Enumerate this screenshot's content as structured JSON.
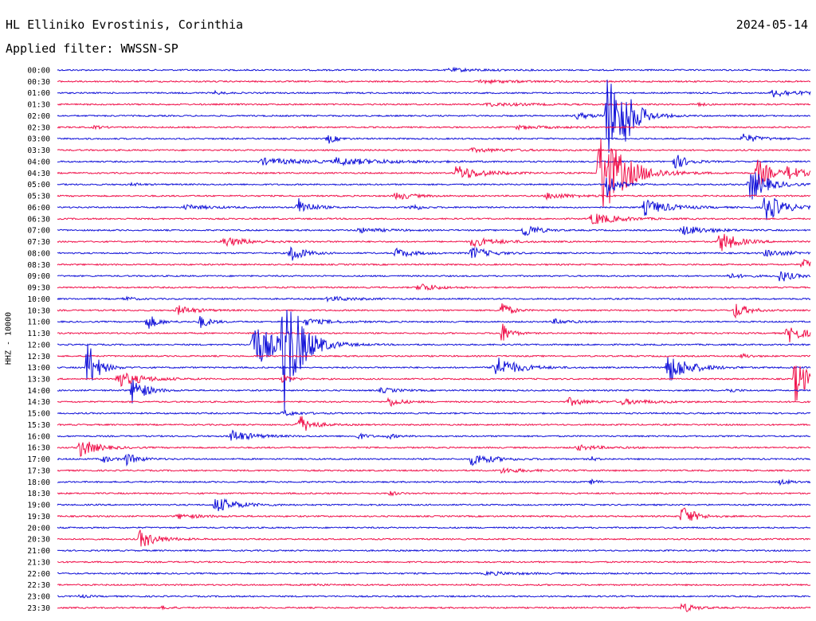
{
  "header": {
    "station": "HL Elliniko Evrostinis, Corinthia",
    "date": "2024-05-14",
    "filter_label": "Applied filter: WWSSN-SP"
  },
  "chart_data": {
    "type": "line",
    "title": "HL Elliniko Evrostinis, Corinthia",
    "subtitle": "Applied filter: WWSSN-SP",
    "date": "2024-05-14",
    "ylabel": "HHZ - 10000",
    "row_interval_minutes": 30,
    "row_labels": [
      "00:00",
      "00:30",
      "01:00",
      "01:30",
      "02:00",
      "02:30",
      "03:00",
      "03:30",
      "04:00",
      "04:30",
      "05:00",
      "05:30",
      "06:00",
      "06:30",
      "07:00",
      "07:30",
      "08:00",
      "08:30",
      "09:00",
      "09:30",
      "10:00",
      "10:30",
      "11:00",
      "11:30",
      "12:00",
      "12:30",
      "13:00",
      "13:30",
      "14:00",
      "14:30",
      "15:00",
      "15:30",
      "16:00",
      "16:30",
      "17:00",
      "17:30",
      "18:00",
      "18:30",
      "19:00",
      "19:30",
      "20:00",
      "20:30",
      "21:00",
      "21:30",
      "22:00",
      "22:30",
      "23:00",
      "23:30"
    ],
    "colors": [
      "#1010d8",
      "#f0104a"
    ],
    "events": [
      {
        "row": 0,
        "x": 0.52,
        "a": 2,
        "w": 0.04
      },
      {
        "row": 1,
        "x": 0.56,
        "a": 2,
        "w": 0.05
      },
      {
        "row": 2,
        "x": 0.95,
        "a": 5,
        "w": 0.03
      },
      {
        "row": 2,
        "x": 0.21,
        "a": 2,
        "w": 0.01
      },
      {
        "row": 3,
        "x": 0.57,
        "a": 2,
        "w": 0.05
      },
      {
        "row": 3,
        "x": 0.85,
        "a": 2,
        "w": 0.01
      },
      {
        "row": 4,
        "x": 0.69,
        "a": 4,
        "w": 0.02
      },
      {
        "row": 4,
        "x": 0.73,
        "a": 55,
        "w": 0.02
      },
      {
        "row": 4,
        "x": 0.75,
        "a": 25,
        "w": 0.015
      },
      {
        "row": 5,
        "x": 0.05,
        "a": 2,
        "w": 0.01
      },
      {
        "row": 5,
        "x": 0.61,
        "a": 2,
        "w": 0.04
      },
      {
        "row": 6,
        "x": 0.36,
        "a": 6,
        "w": 0.01
      },
      {
        "row": 6,
        "x": 0.91,
        "a": 6,
        "w": 0.02
      },
      {
        "row": 7,
        "x": 0.55,
        "a": 2,
        "w": 0.05
      },
      {
        "row": 8,
        "x": 0.27,
        "a": 4,
        "w": 0.06
      },
      {
        "row": 8,
        "x": 0.37,
        "a": 4,
        "w": 0.06
      },
      {
        "row": 8,
        "x": 0.82,
        "a": 10,
        "w": 0.015
      },
      {
        "row": 9,
        "x": 0.53,
        "a": 10,
        "w": 0.03
      },
      {
        "row": 9,
        "x": 0.72,
        "a": 60,
        "w": 0.03
      },
      {
        "row": 9,
        "x": 0.97,
        "a": 8,
        "w": 0.02
      },
      {
        "row": 9,
        "x": 0.93,
        "a": 20,
        "w": 0.015
      },
      {
        "row": 10,
        "x": 0.1,
        "a": 2,
        "w": 0.01
      },
      {
        "row": 10,
        "x": 0.92,
        "a": 22,
        "w": 0.02
      },
      {
        "row": 10,
        "x": 0.73,
        "a": 20,
        "w": 0.01
      },
      {
        "row": 11,
        "x": 0.45,
        "a": 5,
        "w": 0.02
      },
      {
        "row": 11,
        "x": 0.65,
        "a": 4,
        "w": 0.03
      },
      {
        "row": 12,
        "x": 0.17,
        "a": 3,
        "w": 0.03
      },
      {
        "row": 12,
        "x": 0.32,
        "a": 12,
        "w": 0.015
      },
      {
        "row": 12,
        "x": 0.47,
        "a": 5,
        "w": 0.01
      },
      {
        "row": 12,
        "x": 0.78,
        "a": 10,
        "w": 0.03
      },
      {
        "row": 12,
        "x": 0.94,
        "a": 20,
        "w": 0.02
      },
      {
        "row": 13,
        "x": 0.71,
        "a": 8,
        "w": 0.03
      },
      {
        "row": 14,
        "x": 0.4,
        "a": 3,
        "w": 0.03
      },
      {
        "row": 14,
        "x": 0.62,
        "a": 10,
        "w": 0.015
      },
      {
        "row": 14,
        "x": 0.83,
        "a": 6,
        "w": 0.03
      },
      {
        "row": 15,
        "x": 0.22,
        "a": 6,
        "w": 0.03
      },
      {
        "row": 15,
        "x": 0.55,
        "a": 6,
        "w": 0.03
      },
      {
        "row": 15,
        "x": 0.88,
        "a": 14,
        "w": 0.02
      },
      {
        "row": 16,
        "x": 0.31,
        "a": 12,
        "w": 0.015
      },
      {
        "row": 16,
        "x": 0.45,
        "a": 6,
        "w": 0.02
      },
      {
        "row": 16,
        "x": 0.55,
        "a": 8,
        "w": 0.02
      },
      {
        "row": 16,
        "x": 0.94,
        "a": 4,
        "w": 0.03
      },
      {
        "row": 17,
        "x": 0.99,
        "a": 6,
        "w": 0.02
      },
      {
        "row": 18,
        "x": 0.89,
        "a": 3,
        "w": 0.02
      },
      {
        "row": 18,
        "x": 0.96,
        "a": 8,
        "w": 0.015
      },
      {
        "row": 19,
        "x": 0.48,
        "a": 6,
        "w": 0.02
      },
      {
        "row": 20,
        "x": 0.09,
        "a": 3,
        "w": 0.01
      },
      {
        "row": 20,
        "x": 0.36,
        "a": 3,
        "w": 0.03
      },
      {
        "row": 21,
        "x": 0.16,
        "a": 6,
        "w": 0.02
      },
      {
        "row": 21,
        "x": 0.59,
        "a": 12,
        "w": 0.01
      },
      {
        "row": 21,
        "x": 0.9,
        "a": 10,
        "w": 0.015
      },
      {
        "row": 22,
        "x": 0.12,
        "a": 10,
        "w": 0.012
      },
      {
        "row": 22,
        "x": 0.19,
        "a": 8,
        "w": 0.012
      },
      {
        "row": 22,
        "x": 0.33,
        "a": 4,
        "w": 0.03
      },
      {
        "row": 22,
        "x": 0.66,
        "a": 3,
        "w": 0.02
      },
      {
        "row": 23,
        "x": 0.59,
        "a": 14,
        "w": 0.01
      },
      {
        "row": 23,
        "x": 0.97,
        "a": 12,
        "w": 0.02
      },
      {
        "row": 24,
        "x": 0.26,
        "a": 30,
        "w": 0.03
      },
      {
        "row": 24,
        "x": 0.3,
        "a": 85,
        "w": 0.02
      },
      {
        "row": 25,
        "x": 0.91,
        "a": 3,
        "w": 0.01
      },
      {
        "row": 26,
        "x": 0.04,
        "a": 35,
        "w": 0.012
      },
      {
        "row": 26,
        "x": 0.58,
        "a": 16,
        "w": 0.025
      },
      {
        "row": 26,
        "x": 0.81,
        "a": 20,
        "w": 0.025
      },
      {
        "row": 27,
        "x": 0.08,
        "a": 10,
        "w": 0.03
      },
      {
        "row": 27,
        "x": 0.3,
        "a": 6,
        "w": 0.01
      },
      {
        "row": 27,
        "x": 0.98,
        "a": 30,
        "w": 0.015
      },
      {
        "row": 28,
        "x": 0.1,
        "a": 18,
        "w": 0.015
      },
      {
        "row": 28,
        "x": 0.43,
        "a": 3,
        "w": 0.02
      },
      {
        "row": 28,
        "x": 0.89,
        "a": 3,
        "w": 0.01
      },
      {
        "row": 29,
        "x": 0.44,
        "a": 6,
        "w": 0.015
      },
      {
        "row": 29,
        "x": 0.68,
        "a": 5,
        "w": 0.02
      },
      {
        "row": 29,
        "x": 0.75,
        "a": 3,
        "w": 0.04
      },
      {
        "row": 30,
        "x": 0.3,
        "a": 3,
        "w": 0.02
      },
      {
        "row": 31,
        "x": 0.32,
        "a": 14,
        "w": 0.015
      },
      {
        "row": 32,
        "x": 0.23,
        "a": 8,
        "w": 0.025
      },
      {
        "row": 32,
        "x": 0.4,
        "a": 4,
        "w": 0.01
      },
      {
        "row": 32,
        "x": 0.44,
        "a": 3,
        "w": 0.01
      },
      {
        "row": 33,
        "x": 0.03,
        "a": 12,
        "w": 0.02
      },
      {
        "row": 33,
        "x": 0.69,
        "a": 3,
        "w": 0.03
      },
      {
        "row": 34,
        "x": 0.06,
        "a": 5,
        "w": 0.01
      },
      {
        "row": 34,
        "x": 0.09,
        "a": 8,
        "w": 0.015
      },
      {
        "row": 34,
        "x": 0.55,
        "a": 8,
        "w": 0.025
      },
      {
        "row": 34,
        "x": 0.71,
        "a": 3,
        "w": 0.005
      },
      {
        "row": 35,
        "x": 0.59,
        "a": 3,
        "w": 0.03
      },
      {
        "row": 36,
        "x": 0.71,
        "a": 3,
        "w": 0.01
      },
      {
        "row": 36,
        "x": 0.96,
        "a": 3,
        "w": 0.015
      },
      {
        "row": 37,
        "x": 0.44,
        "a": 3,
        "w": 0.01
      },
      {
        "row": 38,
        "x": 0.21,
        "a": 10,
        "w": 0.025
      },
      {
        "row": 39,
        "x": 0.83,
        "a": 14,
        "w": 0.015
      },
      {
        "row": 39,
        "x": 0.16,
        "a": 3,
        "w": 0.03
      },
      {
        "row": 41,
        "x": 0.11,
        "a": 12,
        "w": 0.02
      },
      {
        "row": 44,
        "x": 0.57,
        "a": 2,
        "w": 0.04
      },
      {
        "row": 45,
        "x": 0.34,
        "a": 2,
        "w": 0.01
      },
      {
        "row": 46,
        "x": 0.03,
        "a": 2,
        "w": 0.01
      },
      {
        "row": 47,
        "x": 0.83,
        "a": 6,
        "w": 0.015
      },
      {
        "row": 47,
        "x": 0.14,
        "a": 2,
        "w": 0.01
      }
    ]
  }
}
